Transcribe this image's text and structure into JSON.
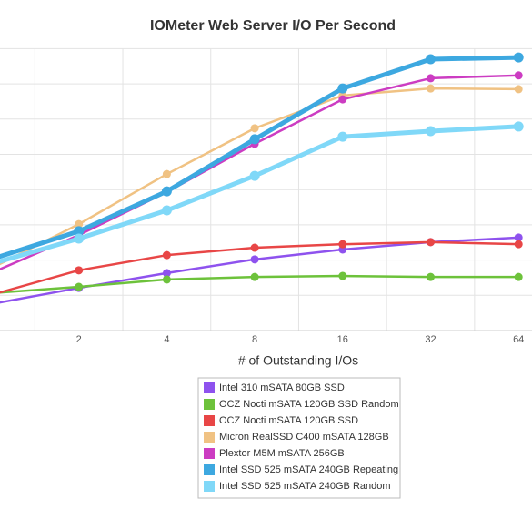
{
  "chart_data": {
    "type": "line",
    "title": "IOMeter Web Server I/O Per Second",
    "x_label": "# of Outstanding I/Os",
    "categories": [
      null,
      2,
      4,
      8,
      16,
      32,
      64
    ],
    "ylim": [
      0,
      8
    ],
    "grid": true,
    "series": [
      {
        "name": "Intel 310 mSATA 80GB SSD",
        "color": "#8e52ee",
        "values": [
          0.75,
          1.21,
          1.63,
          2.02,
          2.3,
          2.51,
          2.64
        ]
      },
      {
        "name": "OCZ Nocti mSATA 120GB SSD Random",
        "color": "#6dc23b",
        "values": [
          1.06,
          1.24,
          1.45,
          1.52,
          1.55,
          1.52,
          1.52
        ]
      },
      {
        "name": "OCZ Nocti mSATA 120GB SSD",
        "color": "#e84646",
        "values": [
          1.01,
          1.71,
          2.14,
          2.35,
          2.45,
          2.51,
          2.45
        ]
      },
      {
        "name": "Micron RealSSD C400 mSATA 128GB",
        "color": "#f0c283",
        "values": [
          1.76,
          3.02,
          4.44,
          5.74,
          6.67,
          6.87,
          6.85
        ]
      },
      {
        "name": "Plextor M5M mSATA 256GB",
        "color": "#cc3cc2",
        "values": [
          1.63,
          2.71,
          3.93,
          5.3,
          6.56,
          7.16,
          7.24
        ]
      },
      {
        "name": "Intel SSD 525 mSATA 240GB Repeating",
        "color": "#3da8e0",
        "values": [
          2.02,
          2.82,
          3.95,
          5.43,
          6.87,
          7.7,
          7.75
        ]
      },
      {
        "name": "Intel SSD 525 mSATA 240GB Random",
        "color": "#80d8f8",
        "values": [
          1.89,
          2.61,
          3.41,
          4.39,
          5.5,
          5.66,
          5.79
        ]
      }
    ]
  }
}
